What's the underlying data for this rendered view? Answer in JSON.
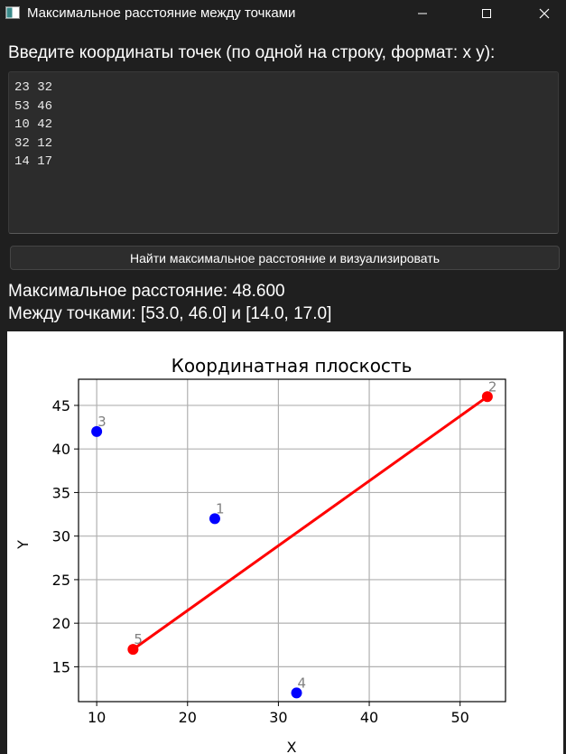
{
  "window": {
    "title": "Максимальное расстояние между точками",
    "icons": [
      "app-icon",
      "minimize-icon",
      "maximize-icon",
      "close-icon"
    ]
  },
  "input": {
    "prompt": "Введите координаты точек (по одной на строку, формат: x y):",
    "value": "23 32\n53 46\n10 42\n32 12\n14 17"
  },
  "action_button": {
    "label": "Найти максимальное расстояние и визуализировать"
  },
  "result": {
    "distance_line": "Максимальное расстояние: 48.600",
    "points_line": "Между точками: [53.0, 46.0] и [14.0, 17.0]"
  },
  "chart_data": {
    "type": "scatter",
    "title": "Координатная плоскость",
    "xlabel": "X",
    "ylabel": "Y",
    "xlim": [
      8,
      55
    ],
    "ylim": [
      11,
      48
    ],
    "xticks": [
      10,
      20,
      30,
      40,
      50
    ],
    "yticks": [
      15,
      20,
      25,
      30,
      35,
      40,
      45
    ],
    "grid": true,
    "points": [
      {
        "label": "1",
        "x": 23,
        "y": 32,
        "color": "#0000ff"
      },
      {
        "label": "2",
        "x": 53,
        "y": 46,
        "color": "#ff0000"
      },
      {
        "label": "3",
        "x": 10,
        "y": 42,
        "color": "#0000ff"
      },
      {
        "label": "4",
        "x": 32,
        "y": 12,
        "color": "#0000ff"
      },
      {
        "label": "5",
        "x": 14,
        "y": 17,
        "color": "#ff0000"
      }
    ],
    "line": {
      "from": [
        53,
        46
      ],
      "to": [
        14,
        17
      ],
      "color": "#ff0000"
    }
  }
}
